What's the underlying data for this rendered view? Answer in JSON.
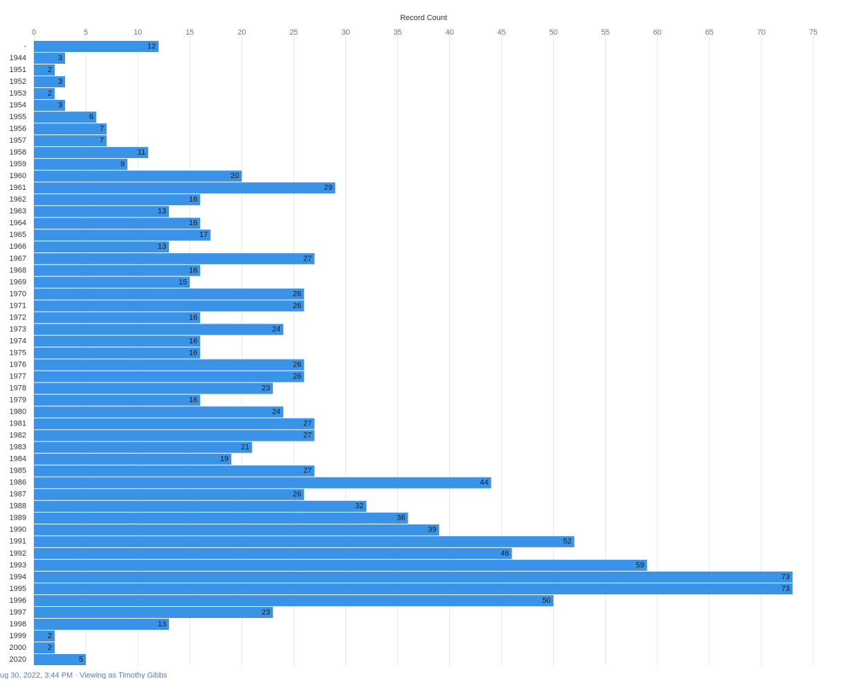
{
  "chart_data": {
    "type": "hbar",
    "x_label": "Record Count",
    "categories": [
      "-",
      "1944",
      "1951",
      "1952",
      "1953",
      "1954",
      "1955",
      "1956",
      "1957",
      "1958",
      "1959",
      "1960",
      "1961",
      "1962",
      "1963",
      "1964",
      "1965",
      "1966",
      "1967",
      "1968",
      "1969",
      "1970",
      "1971",
      "1972",
      "1973",
      "1974",
      "1975",
      "1976",
      "1977",
      "1978",
      "1979",
      "1980",
      "1981",
      "1982",
      "1983",
      "1984",
      "1985",
      "1986",
      "1987",
      "1988",
      "1989",
      "1990",
      "1991",
      "1992",
      "1993",
      "1994",
      "1995",
      "1996",
      "1997",
      "1998",
      "1999",
      "2000",
      "2020"
    ],
    "values": [
      12,
      3,
      2,
      3,
      2,
      3,
      6,
      7,
      7,
      11,
      9,
      20,
      29,
      16,
      13,
      16,
      17,
      13,
      27,
      16,
      15,
      26,
      26,
      16,
      24,
      16,
      16,
      26,
      26,
      23,
      16,
      24,
      27,
      27,
      21,
      19,
      27,
      44,
      26,
      32,
      36,
      39,
      52,
      46,
      59,
      73,
      73,
      50,
      23,
      13,
      2,
      2,
      5
    ],
    "color": "#3a93e6",
    "xlim": [
      0,
      75
    ],
    "xticks": [
      0,
      5,
      10,
      15,
      20,
      25,
      30,
      35,
      40,
      45,
      50,
      55,
      60,
      65,
      70,
      75
    ],
    "grid": true
  },
  "footer": "ug 30, 2022, 3:44 PM · Viewing as Timothy Gibbs"
}
